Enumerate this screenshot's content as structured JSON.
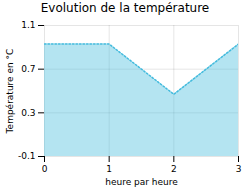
{
  "chart_data": {
    "type": "area",
    "title": "Evolution de la température",
    "xlabel": "heure par heure",
    "ylabel": "Température en °C",
    "x": [
      0,
      1,
      2,
      3
    ],
    "values": [
      0.93,
      0.93,
      0.47,
      0.93
    ],
    "xlim": [
      0,
      3
    ],
    "ylim": [
      -0.1,
      1.1
    ],
    "xticks": [
      0,
      1,
      2,
      3
    ],
    "yticks": [
      -0.1,
      0.3,
      0.7,
      1.1
    ],
    "color": "#44bbdd",
    "line_style": "dotted",
    "grid": true
  }
}
